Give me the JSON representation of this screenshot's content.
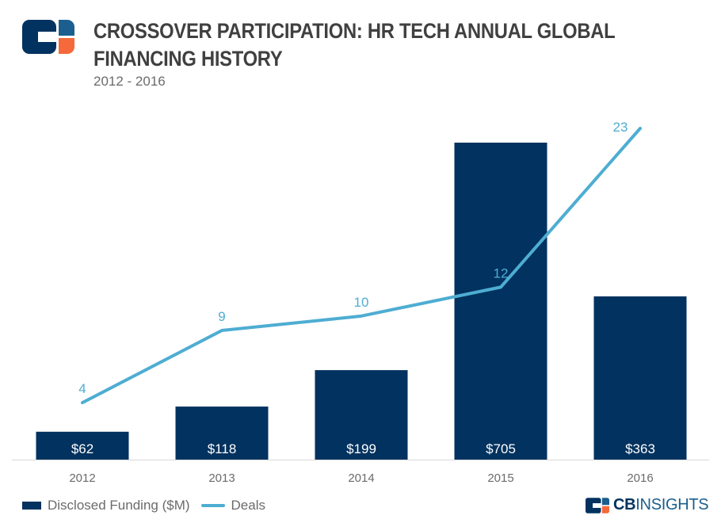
{
  "header": {
    "title_line1": "CROSSOVER PARTICIPATION: HR TECH ANNUAL GLOBAL",
    "title_line2": "FINANCING HISTORY",
    "subtitle": "2012 - 2016"
  },
  "colors": {
    "bar": "#02325f",
    "line": "#4eadd2",
    "logo_orange": "#f5693a",
    "axis_text": "#6b6b6b"
  },
  "legend": {
    "bar_label": "Disclosed Funding ($M)",
    "line_label": "Deals"
  },
  "brand": {
    "bold": "CB",
    "light": "INSIGHTS"
  },
  "chart_data": {
    "type": "bar",
    "title": "CROSSOVER PARTICIPATION: HR TECH ANNUAL GLOBAL FINANCING HISTORY",
    "subtitle": "2012 - 2016",
    "categories": [
      "2012",
      "2013",
      "2014",
      "2015",
      "2016"
    ],
    "series": [
      {
        "name": "Disclosed Funding ($M)",
        "type": "bar",
        "values": [
          62,
          118,
          199,
          705,
          363
        ],
        "labels": [
          "$62",
          "$118",
          "$199",
          "$705",
          "$363"
        ]
      },
      {
        "name": "Deals",
        "type": "line",
        "values": [
          4,
          9,
          10,
          12,
          23
        ],
        "labels": [
          "4",
          "9",
          "10",
          "12",
          "23"
        ]
      }
    ],
    "xlabel": "",
    "ylabel": "",
    "bar_ylim": [
      0,
      705
    ],
    "line_ylim": [
      0,
      23
    ],
    "grid": false,
    "legend_position": "bottom-left"
  }
}
